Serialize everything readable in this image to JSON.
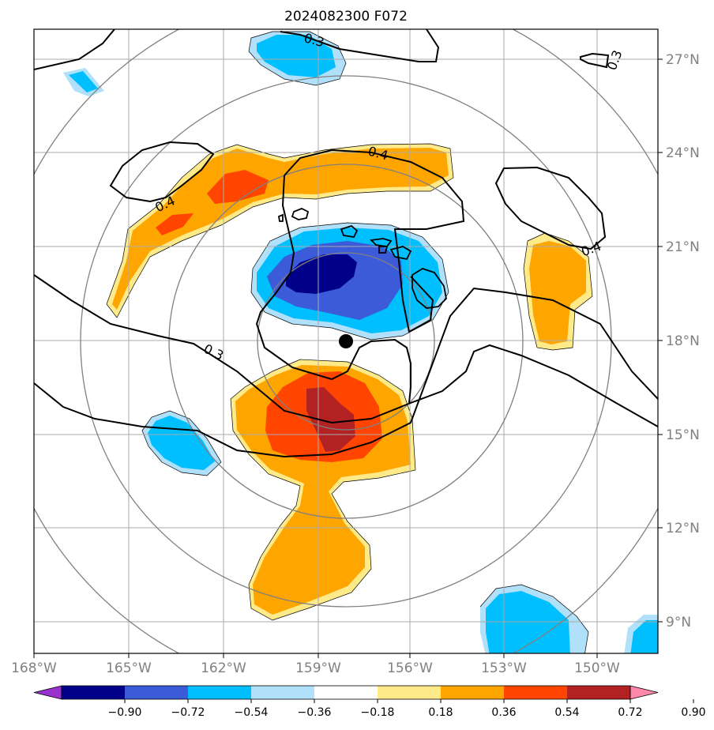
{
  "title": "2024082300 F072",
  "lon_labels": [
    "168°W",
    "165°W",
    "162°W",
    "159°W",
    "156°W",
    "153°W",
    "150°W"
  ],
  "lat_labels": [
    "27°N",
    "24°N",
    "21°N",
    "18°N",
    "15°N",
    "12°N",
    "9°N"
  ],
  "colorbar": {
    "ticks": [
      "−0.90",
      "−0.72",
      "−0.54",
      "−0.36",
      "−0.18",
      "0.18",
      "0.36",
      "0.54",
      "0.72",
      "0.90"
    ],
    "colors": [
      "#9932cc",
      "#00008b",
      "#3b5bd9",
      "#00bfff",
      "#b0e0fa",
      "#ffffff",
      "#ffea8a",
      "#ffa500",
      "#ff4500",
      "#b22222",
      "#ff88aa"
    ]
  },
  "contour_labels": {
    "top": "0.3",
    "top_right": "0.3",
    "upper_left": "0.4",
    "upper_mid": "0.4",
    "right": "0.4",
    "mid_left": "0.3"
  },
  "colors": {
    "dark_blue": "#00008b",
    "royal_blue": "#3b5bd9",
    "deep_sky": "#00bfff",
    "light_blue": "#b0e0fa",
    "pale_yellow": "#ffea8a",
    "orange": "#ffa500",
    "orange_red": "#ff4500",
    "firebrick": "#b22222"
  }
}
